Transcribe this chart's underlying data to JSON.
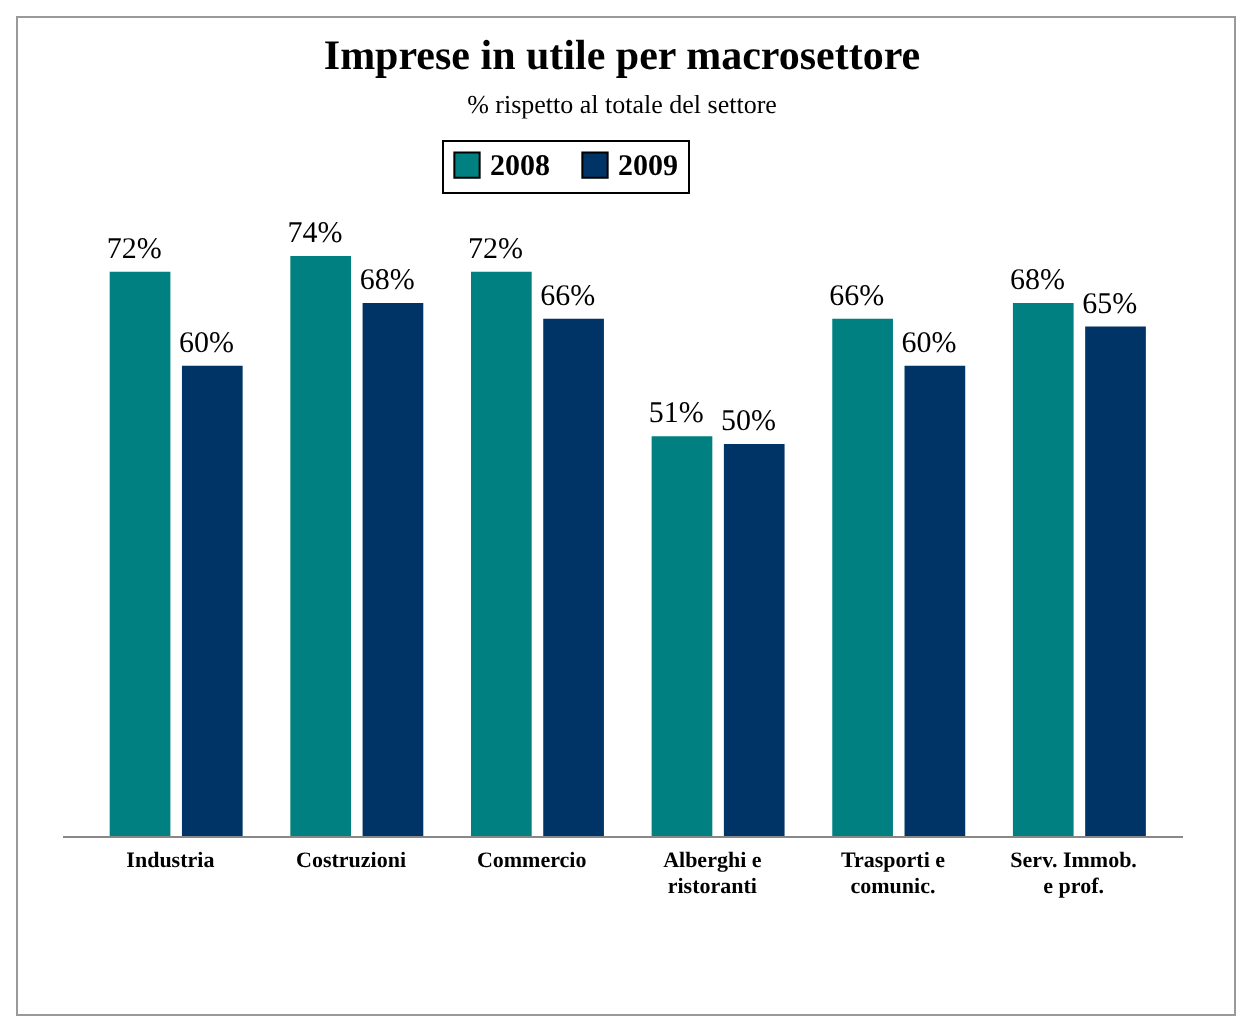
{
  "chart_data": {
    "type": "bar",
    "title": "Imprese in utile per macrosettore",
    "subtitle": "% rispetto al totale del settore",
    "categories": [
      "Industria",
      "Costruzioni",
      "Commercio",
      "Alberghi e ristoranti",
      "Trasporti e comunic.",
      "Serv. Immob. e prof."
    ],
    "series": [
      {
        "name": "2008",
        "color": "#008080",
        "values": [
          72,
          74,
          72,
          51,
          66,
          68
        ],
        "value_labels": [
          "72%",
          "74%",
          "72%",
          "51%",
          "66%",
          "68%"
        ]
      },
      {
        "name": "2009",
        "color": "#003366",
        "values": [
          60,
          68,
          66,
          50,
          60,
          65
        ],
        "value_labels": [
          "60%",
          "68%",
          "66%",
          "50%",
          "60%",
          "65%"
        ]
      }
    ],
    "legend": "top"
  }
}
